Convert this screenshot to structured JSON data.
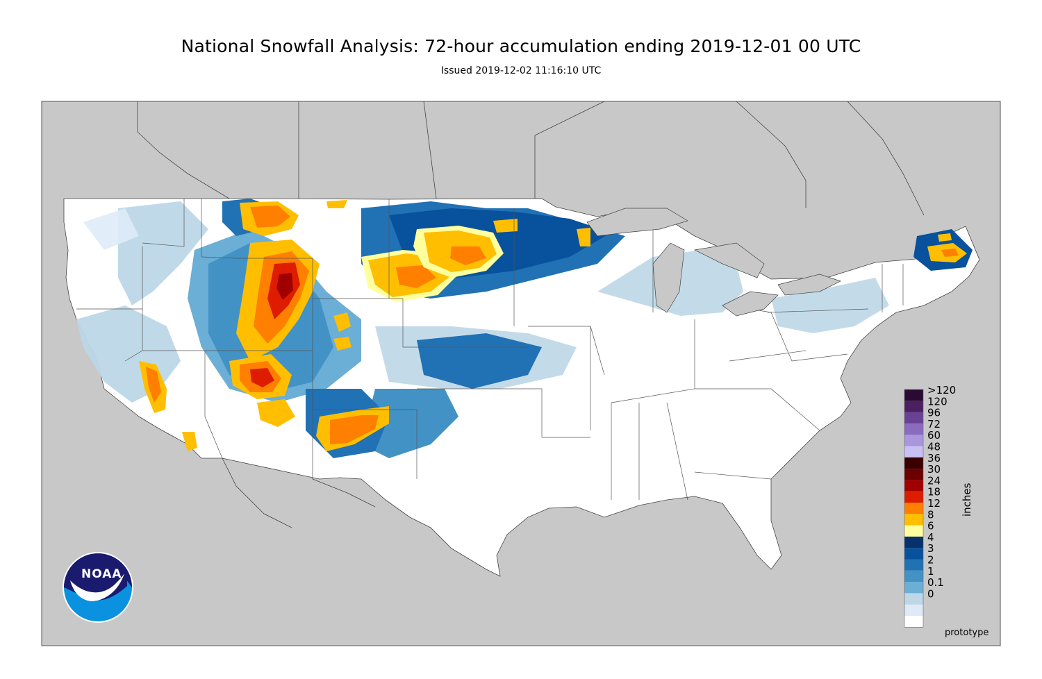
{
  "header": {
    "title": "National Snowfall Analysis: 72-hour accumulation ending 2019-12-01 00 UTC",
    "subtitle": "Issued 2019-12-02 11:16:10 UTC"
  },
  "legend": {
    "units_label": "inches",
    "levels": [
      {
        "label": ">120",
        "color": "#2a0a33"
      },
      {
        "label": "120",
        "color": "#4b2060"
      },
      {
        "label": "96",
        "color": "#6a4295"
      },
      {
        "label": "72",
        "color": "#8a6bc0"
      },
      {
        "label": "60",
        "color": "#a996dd"
      },
      {
        "label": "48",
        "color": "#c8c0f2"
      },
      {
        "label": "36",
        "color": "#3a0000"
      },
      {
        "label": "30",
        "color": "#6b0000"
      },
      {
        "label": "24",
        "color": "#a00000"
      },
      {
        "label": "18",
        "color": "#dd1c00"
      },
      {
        "label": "12",
        "color": "#ff7f00"
      },
      {
        "label": "8",
        "color": "#ffbf00"
      },
      {
        "label": "6",
        "color": "#ffff9e"
      },
      {
        "label": "4",
        "color": "#08306b"
      },
      {
        "label": "3",
        "color": "#08519c"
      },
      {
        "label": "2",
        "color": "#2171b5"
      },
      {
        "label": "1",
        "color": "#4292c6"
      },
      {
        "label": "0.1",
        "color": "#6baed6"
      },
      {
        "label": "0",
        "color": "#bdd7e7"
      }
    ],
    "extra_bottom_colors": [
      "#deebf7",
      "#ffffff"
    ]
  },
  "footer": {
    "status_label": "prototype"
  },
  "logo": {
    "text": "NOAA",
    "name": "noaa-logo"
  },
  "colors": {
    "background_land": "#c8c8c8",
    "conus_fill": "#ffffff",
    "border_lines": "#333333"
  }
}
